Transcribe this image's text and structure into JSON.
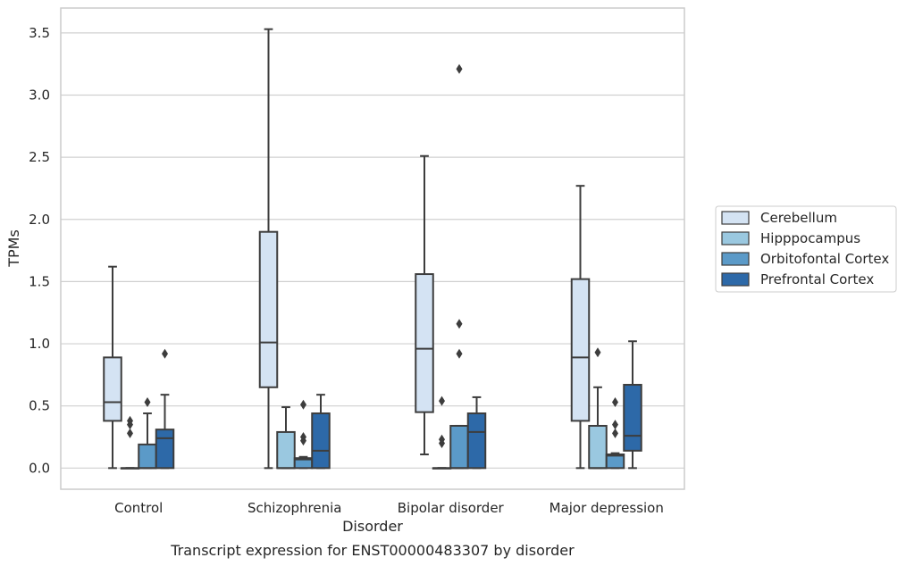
{
  "chart_data": {
    "type": "box",
    "title": "",
    "caption": "Transcript expression for ENST00000483307 by disorder",
    "xlabel": "Disorder",
    "ylabel": "TPMs",
    "ylim": [
      -0.17,
      3.7
    ],
    "yticks": [
      "0.0",
      "0.5",
      "1.0",
      "1.5",
      "2.0",
      "2.5",
      "3.0",
      "3.5"
    ],
    "grid": true,
    "legend_placement": "right",
    "categories": [
      "Control",
      "Schizophrenia",
      "Bipolar disorder",
      "Major depression"
    ],
    "series": [
      {
        "name": "Cerebellum",
        "color": "#d4e3f3",
        "boxes": [
          {
            "whislo": 0.0,
            "q1": 0.38,
            "med": 0.53,
            "q3": 0.89,
            "whishi": 1.62,
            "fliers": []
          },
          {
            "whislo": 0.0,
            "q1": 0.65,
            "med": 1.01,
            "q3": 1.9,
            "whishi": 3.53,
            "fliers": []
          },
          {
            "whislo": 0.11,
            "q1": 0.45,
            "med": 0.96,
            "q3": 1.56,
            "whishi": 2.51,
            "fliers": []
          },
          {
            "whislo": 0.0,
            "q1": 0.38,
            "med": 0.89,
            "q3": 1.52,
            "whishi": 2.27,
            "fliers": []
          }
        ]
      },
      {
        "name": "Hipppocampus",
        "color": "#9ac8e0",
        "boxes": [
          {
            "whislo": 0.0,
            "q1": 0.0,
            "med": 0.0,
            "q3": 0.0,
            "whishi": 0.0,
            "fliers": [
              0.28,
              0.35,
              0.38
            ]
          },
          {
            "whislo": 0.0,
            "q1": 0.0,
            "med": 0.0,
            "q3": 0.29,
            "whishi": 0.49,
            "fliers": []
          },
          {
            "whislo": 0.0,
            "q1": 0.0,
            "med": 0.0,
            "q3": 0.0,
            "whishi": 0.0,
            "fliers": [
              0.2,
              0.23,
              0.54
            ]
          },
          {
            "whislo": 0.0,
            "q1": 0.0,
            "med": 0.0,
            "q3": 0.34,
            "whishi": 0.65,
            "fliers": [
              0.93
            ]
          }
        ]
      },
      {
        "name": "Orbitofontal Cortex",
        "color": "#5b9ac8",
        "boxes": [
          {
            "whislo": 0.0,
            "q1": 0.0,
            "med": 0.0,
            "q3": 0.19,
            "whishi": 0.44,
            "fliers": [
              0.53
            ]
          },
          {
            "whislo": 0.0,
            "q1": 0.0,
            "med": 0.07,
            "q3": 0.08,
            "whishi": 0.09,
            "fliers": [
              0.22,
              0.25,
              0.51
            ]
          },
          {
            "whislo": 0.0,
            "q1": 0.0,
            "med": 0.0,
            "q3": 0.34,
            "whishi": 0.34,
            "fliers": [
              0.92,
              1.16,
              3.21
            ]
          },
          {
            "whislo": 0.0,
            "q1": 0.0,
            "med": 0.1,
            "q3": 0.11,
            "whishi": 0.12,
            "fliers": [
              0.28,
              0.35,
              0.53
            ]
          }
        ]
      },
      {
        "name": "Prefrontal Cortex",
        "color": "#2d69a8",
        "boxes": [
          {
            "whislo": 0.0,
            "q1": 0.0,
            "med": 0.24,
            "q3": 0.31,
            "whishi": 0.59,
            "fliers": [
              0.92
            ]
          },
          {
            "whislo": 0.0,
            "q1": 0.0,
            "med": 0.14,
            "q3": 0.44,
            "whishi": 0.59,
            "fliers": []
          },
          {
            "whislo": 0.0,
            "q1": 0.0,
            "med": 0.29,
            "q3": 0.44,
            "whishi": 0.57,
            "fliers": []
          },
          {
            "whislo": 0.0,
            "q1": 0.14,
            "med": 0.26,
            "q3": 0.67,
            "whishi": 1.02,
            "fliers": []
          }
        ]
      }
    ]
  }
}
